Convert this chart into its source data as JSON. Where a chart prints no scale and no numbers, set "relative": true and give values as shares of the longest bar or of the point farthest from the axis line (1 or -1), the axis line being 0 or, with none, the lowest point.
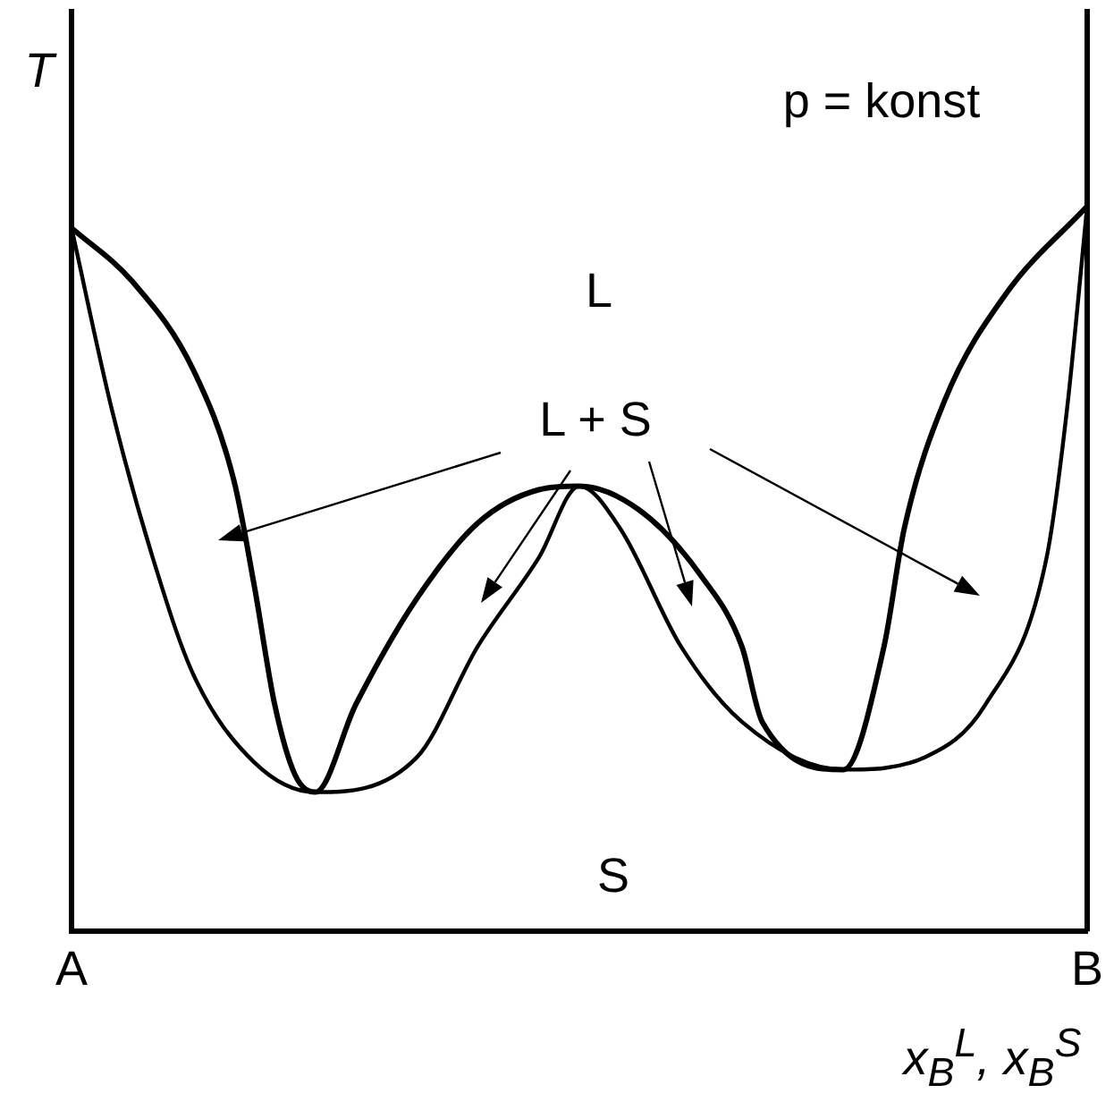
{
  "chart_data": {
    "type": "line",
    "relative": true,
    "xlabel": "x$_{B}$$^{L}$, x$_{B}$$^{S}$",
    "ylabel": "T",
    "marker": "none",
    "line_style": "solid",
    "legend": false,
    "categories": [
      "A",
      null,
      null,
      null,
      null,
      null,
      null,
      null,
      null,
      null,
      null,
      null,
      null,
      null,
      null,
      null,
      null,
      null,
      null,
      null,
      null,
      null,
      null,
      null,
      null,
      null,
      null,
      null,
      null,
      null,
      null,
      null,
      null,
      null,
      null,
      null,
      null,
      null,
      null,
      null,
      null,
      null,
      null,
      null,
      null,
      null,
      null,
      null,
      null,
      null,
      "B"
    ],
    "annotations": [
      "p = konst",
      "L",
      "L + S",
      "S"
    ],
    "series": [
      {
        "color": "#000000",
        "values": [
          0.97,
          null,
          null,
          0.896,
          null,
          null,
          0.774,
          null,
          0.621,
          0.476,
          0.313,
          0.216,
          0.192,
          null,
          0.313,
          null,
          null,
          0.459,
          null,
          null,
          0.563,
          null,
          null,
          0.609,
          null,
          0.614,
          null,
          null,
          0.58,
          null,
          null,
          0.49,
          null,
          0.393,
          0.289,
          null,
          null,
          null,
          0.223,
          null,
          0.393,
          0.556,
          null,
          0.733,
          null,
          null,
          0.879,
          null,
          null,
          null,
          1
        ]
      },
      {
        "color": "#000000",
        "values": [
          0.97,
          null,
          0.718,
          null,
          0.515,
          null,
          0.354,
          null,
          null,
          0.233,
          null,
          null,
          0.192,
          null,
          null,
          null,
          null,
          0.24,
          null,
          null,
          0.393,
          null,
          null,
          0.515,
          null,
          0.614,
          null,
          0.556,
          null,
          null,
          0.393,
          null,
          null,
          0.289,
          null,
          null,
          null,
          null,
          0.223,
          null,
          null,
          null,
          0.24,
          null,
          null,
          0.313,
          null,
          null,
          0.515,
          0.718,
          1
        ]
      }
    ]
  }
}
